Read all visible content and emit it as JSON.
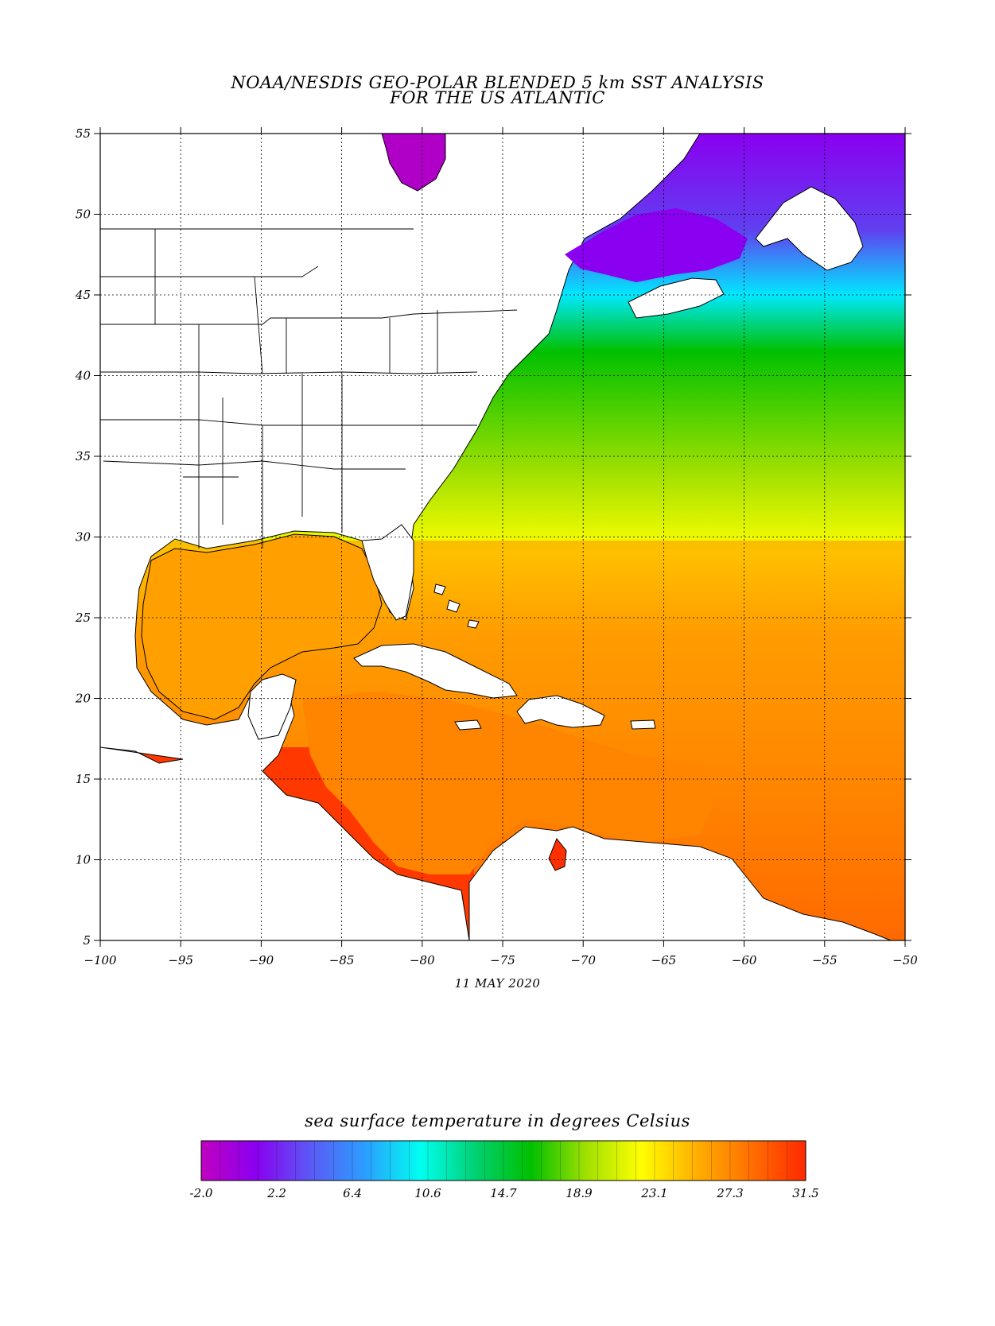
{
  "title_line1": "NOAA/NESDIS GEO-POLAR BLENDED 5 km SST ANALYSIS",
  "title_line2": "FOR THE US ATLANTIC",
  "date": "11 MAY 2020",
  "map": {
    "lon_range": [
      -100,
      -50
    ],
    "lat_range": [
      5,
      55
    ],
    "grid": true,
    "x_tick_labels": [
      "−100",
      "−95",
      "−90",
      "−85",
      "−80",
      "−75",
      "−70",
      "−65",
      "−60",
      "−55",
      "−50"
    ],
    "y_tick_labels": [
      "5",
      "10",
      "15",
      "20",
      "25",
      "30",
      "35",
      "40",
      "45",
      "50",
      "55"
    ],
    "x_tick_values": [
      -100,
      -95,
      -90,
      -85,
      -80,
      -75,
      -70,
      -65,
      -60,
      -55,
      -50
    ],
    "y_tick_values": [
      5,
      10,
      15,
      20,
      25,
      30,
      35,
      40,
      45,
      50,
      55
    ]
  },
  "colorbar": {
    "title": "sea surface temperature in degrees Celsius",
    "min": -2.0,
    "max": 31.5,
    "tick_labels": [
      "-2.0",
      "2.2",
      "6.4",
      "10.6",
      "14.7",
      "18.9",
      "23.1",
      "27.3",
      "31.5"
    ],
    "colors": [
      "#c000c0",
      "#8a00f0",
      "#5a5af5",
      "#2aa0ff",
      "#00fff0",
      "#00d070",
      "#00c000",
      "#a0e000",
      "#ffff00",
      "#ffb000",
      "#ff7000",
      "#ff2800"
    ]
  }
}
